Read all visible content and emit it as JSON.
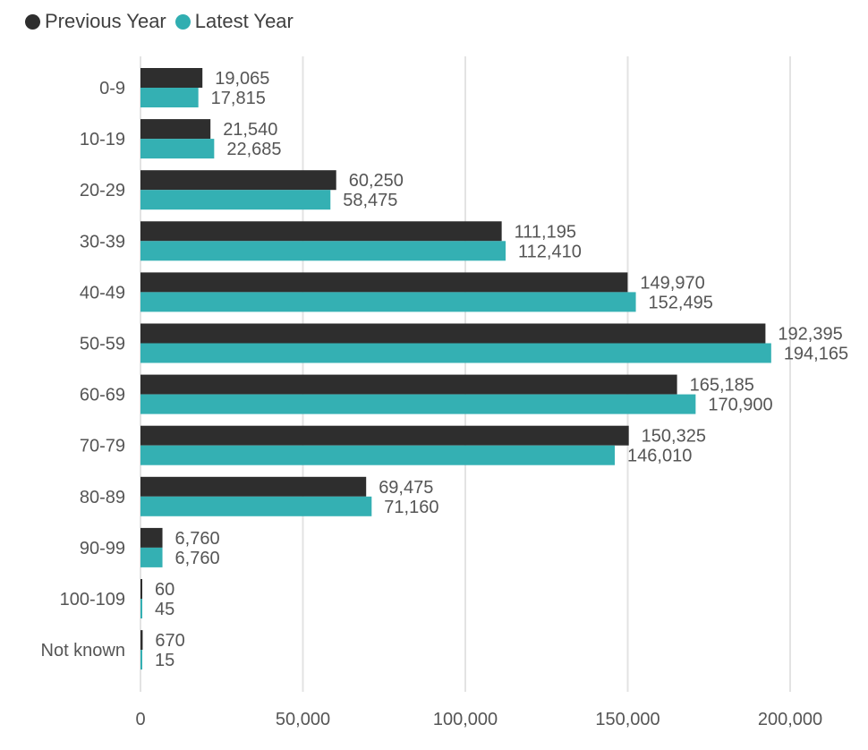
{
  "chart_data": {
    "type": "bar",
    "orientation": "horizontal",
    "categories": [
      "0-9",
      "10-19",
      "20-29",
      "30-39",
      "40-49",
      "50-59",
      "60-69",
      "70-79",
      "80-89",
      "90-99",
      "100-109",
      "Not known"
    ],
    "series": [
      {
        "name": "Previous Year",
        "color": "#2e2e2e",
        "values": [
          19065,
          21540,
          60250,
          111195,
          149970,
          192395,
          165185,
          150325,
          69475,
          6760,
          60,
          670
        ],
        "labels": [
          "19,065",
          "21,540",
          "60,250",
          "111,195",
          "149,970",
          "192,395",
          "165,185",
          "150,325",
          "69,475",
          "6,760",
          "60",
          "670"
        ]
      },
      {
        "name": "Latest Year",
        "color": "#30aeb1",
        "values": [
          17815,
          22685,
          58475,
          112410,
          152495,
          194165,
          170900,
          146010,
          71160,
          6760,
          45,
          15
        ],
        "labels": [
          "17,815",
          "22,685",
          "58,475",
          "112,410",
          "152,495",
          "194,165",
          "170,900",
          "146,010",
          "71,160",
          "6,760",
          "45",
          "15"
        ]
      }
    ],
    "xlim": [
      0,
      200000
    ],
    "xticks": [
      0,
      50000,
      100000,
      150000,
      200000
    ],
    "xtick_labels": [
      "0",
      "50,000",
      "100,000",
      "150,000",
      "200,000"
    ],
    "grid": true,
    "legend_position": "top-left",
    "title": "",
    "xlabel": "",
    "ylabel": ""
  }
}
